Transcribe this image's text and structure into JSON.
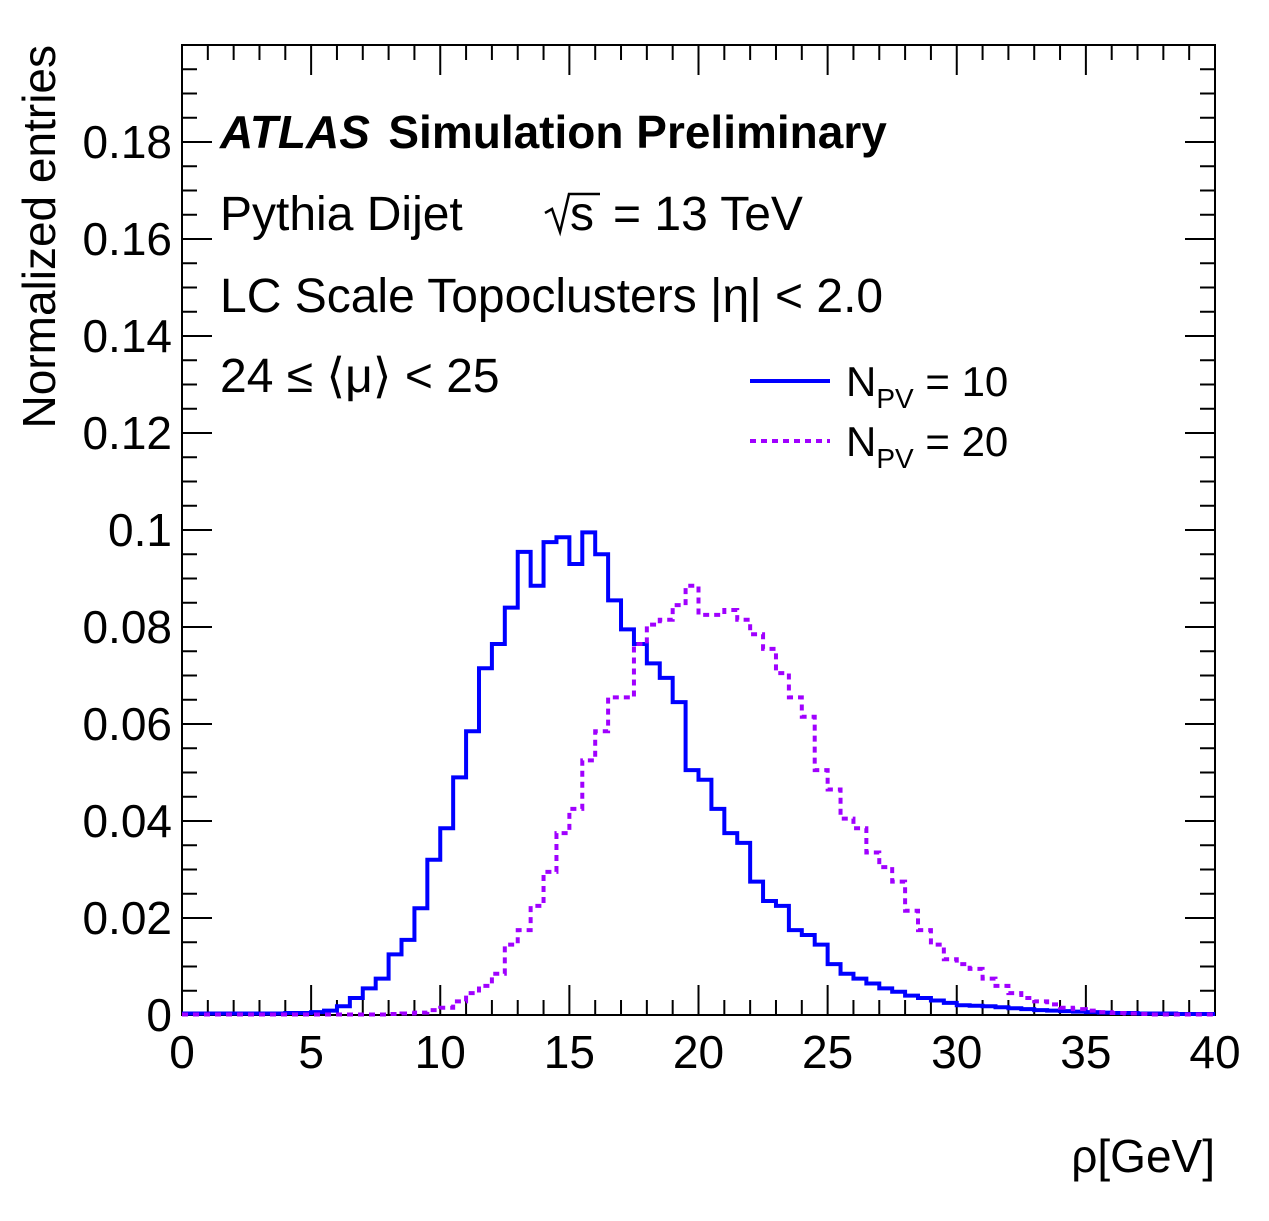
{
  "chart_data": {
    "type": "line",
    "style": "step histogram",
    "xlabel": "ρ[GeV]",
    "ylabel": "Normalized entries",
    "xlim": [
      0,
      40
    ],
    "ylim": [
      0,
      0.2
    ],
    "x_ticks": [
      "0",
      "5",
      "10",
      "15",
      "20",
      "25",
      "30",
      "35",
      "40"
    ],
    "y_ticks": [
      "0",
      "0.02",
      "0.04",
      "0.06",
      "0.08",
      "0.1",
      "0.12",
      "0.14",
      "0.16",
      "0.18"
    ],
    "grid": false,
    "legend_position": "top-right",
    "bin_width": 0.5,
    "annotations": {
      "experiment": "ATLAS",
      "status": "Simulation Preliminary",
      "generator": "Pythia Dijet",
      "sqrt_s": "s",
      "energy": "= 13 TeV",
      "selection": "LC Scale Topoclusters |η| < 2.0",
      "mu_range": "24 ≤ ⟨μ⟩ < 25"
    },
    "legend": {
      "n_symbol": "N",
      "n_subscript": "PV"
    },
    "series": [
      {
        "name": "N_PV = 10",
        "label_value": " = 10",
        "color": "#0000ff",
        "line_style": "solid",
        "values": [
          0.0003,
          0.0003,
          0.0003,
          0.0003,
          0.0003,
          0.0003,
          0.0003,
          0.0003,
          0.0004,
          0.0004,
          0.0006,
          0.0009,
          0.0018,
          0.0035,
          0.0055,
          0.0075,
          0.0125,
          0.0155,
          0.022,
          0.032,
          0.0385,
          0.049,
          0.0585,
          0.0715,
          0.0765,
          0.084,
          0.0955,
          0.0885,
          0.0975,
          0.0985,
          0.093,
          0.0995,
          0.095,
          0.0855,
          0.0795,
          0.0765,
          0.0725,
          0.0695,
          0.0645,
          0.0505,
          0.0485,
          0.0425,
          0.0375,
          0.0355,
          0.0275,
          0.0235,
          0.0225,
          0.0175,
          0.0165,
          0.0145,
          0.0105,
          0.0085,
          0.0075,
          0.0065,
          0.0055,
          0.0048,
          0.004,
          0.0035,
          0.003,
          0.0025,
          0.002,
          0.0019,
          0.0018,
          0.0016,
          0.0014,
          0.0012,
          0.001,
          0.0009,
          0.0008,
          0.0007,
          0.0006,
          0.0005,
          0.0004,
          0.0004,
          0.0003,
          0.0003,
          0.0003,
          0.0002,
          0.0002,
          0.0002
        ]
      },
      {
        "name": "N_PV = 20",
        "label_value": " = 20",
        "color": "#a000ff",
        "line_style": "dotted",
        "values": [
          0.0001,
          0.0001,
          0.0001,
          0.0001,
          0.0001,
          0.0001,
          0.0001,
          0.0001,
          0.0001,
          0.0001,
          0.0001,
          0.0001,
          0.0001,
          0.0001,
          0.0001,
          0.0001,
          0.0002,
          0.0003,
          0.0005,
          0.001,
          0.0015,
          0.0028,
          0.0045,
          0.006,
          0.0085,
          0.0145,
          0.0175,
          0.0225,
          0.0295,
          0.0375,
          0.0425,
          0.0525,
          0.0585,
          0.0655,
          0.0655,
          0.0765,
          0.0805,
          0.0815,
          0.0845,
          0.0885,
          0.0825,
          0.0825,
          0.0835,
          0.0815,
          0.0785,
          0.0755,
          0.0705,
          0.0655,
          0.0615,
          0.0505,
          0.0465,
          0.0405,
          0.0385,
          0.0335,
          0.0305,
          0.0275,
          0.0215,
          0.0175,
          0.0145,
          0.0115,
          0.0105,
          0.0095,
          0.0075,
          0.006,
          0.0045,
          0.0035,
          0.0028,
          0.0022,
          0.0015,
          0.0012,
          0.0009,
          0.0006,
          0.0004,
          0.0003,
          0.0002,
          0.0001,
          0.0001,
          0.0001,
          0.0001,
          0.0001
        ]
      }
    ]
  }
}
